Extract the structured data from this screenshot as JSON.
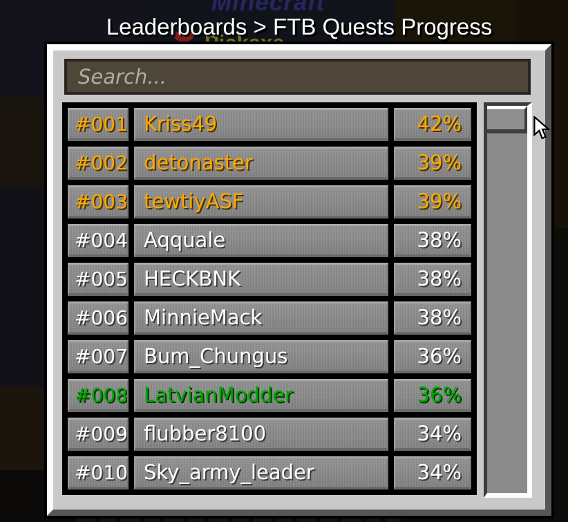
{
  "window": {
    "title": "Leaderboards > FTB Quests Progress"
  },
  "search": {
    "placeholder": "Search...",
    "value": ""
  },
  "leaderboard": {
    "rows": [
      {
        "rank": "#001",
        "name": "Kriss49",
        "progress": "42%",
        "color": "gold"
      },
      {
        "rank": "#002",
        "name": "detonaster",
        "progress": "39%",
        "color": "gold"
      },
      {
        "rank": "#003",
        "name": "tewtiyASF",
        "progress": "39%",
        "color": "gold"
      },
      {
        "rank": "#004",
        "name": "Aqquale",
        "progress": "38%",
        "color": "white"
      },
      {
        "rank": "#005",
        "name": "HECKBNK",
        "progress": "38%",
        "color": "white"
      },
      {
        "rank": "#006",
        "name": "MinnieMack",
        "progress": "38%",
        "color": "white"
      },
      {
        "rank": "#007",
        "name": "Bum_Chungus",
        "progress": "36%",
        "color": "white"
      },
      {
        "rank": "#008",
        "name": "LatvianModder",
        "progress": "36%",
        "color": "green"
      },
      {
        "rank": "#009",
        "name": "flubber8100",
        "progress": "34%",
        "color": "white"
      },
      {
        "rank": "#010",
        "name": "Sky_army_leader",
        "progress": "34%",
        "color": "white"
      }
    ]
  },
  "colors": {
    "gold": {
      "text": "#fca800",
      "shadow": "#4a3304"
    },
    "white": {
      "text": "#ffffff",
      "shadow": "#3d3d3d"
    },
    "green": {
      "text": "#00a600",
      "shadow": "#003b00"
    },
    "panel": "#c9c9c9",
    "list_background": "#000000",
    "search_background": "#4e4739",
    "cell_background": "#8c8c8c"
  },
  "scrollbar": {
    "thumb_position": "top"
  },
  "icons": {
    "cursor": "arrow-pointer",
    "heart": "❤"
  },
  "background_hints": {
    "game_title": "Minecraft",
    "quest_label": "Pickaxe"
  }
}
